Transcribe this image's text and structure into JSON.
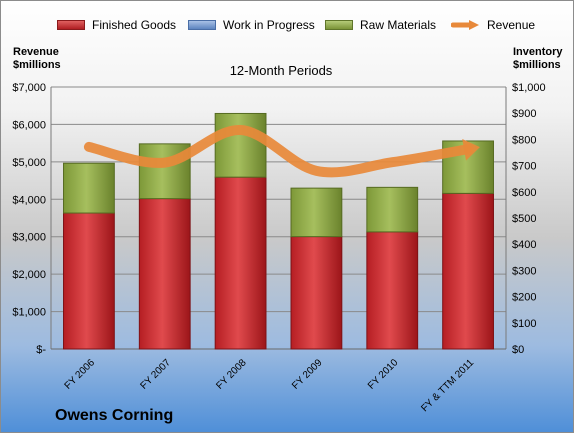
{
  "company": "Owens Corning",
  "chart_data": {
    "type": "bar",
    "stacked": true,
    "title": "12-Month Periods",
    "categories": [
      "FY 2006",
      "FY 2007",
      "FY 2008",
      "FY 2009",
      "FY 2010",
      "FY & TTM 2011"
    ],
    "y_left": {
      "label": "Revenue $millions",
      "ylim": [
        0,
        7000
      ],
      "ticks": [
        0,
        1000,
        2000,
        3000,
        4000,
        5000,
        6000,
        7000
      ],
      "tick_labels": [
        "$-",
        "$1,000",
        "$2,000",
        "$3,000",
        "$4,000",
        "$5,000",
        "$6,000",
        "$7,000"
      ]
    },
    "y_right": {
      "label": "Inventory $millions",
      "ylim": [
        0,
        1000
      ],
      "ticks": [
        0,
        100,
        200,
        300,
        400,
        500,
        600,
        700,
        800,
        900,
        1000
      ],
      "tick_labels": [
        "$0",
        "$100",
        "$200",
        "$300",
        "$400",
        "$500",
        "$600",
        "$700",
        "$800",
        "$900",
        "$1,000"
      ]
    },
    "grid": true,
    "legend": "top",
    "series": [
      {
        "name": "Finished Goods",
        "axis": "right",
        "color": "#c0282c",
        "values": [
          519,
          574,
          656,
          429,
          447,
          594
        ]
      },
      {
        "name": "Work in Progress",
        "axis": "right",
        "color": "#6f93c8",
        "values": [
          0,
          0,
          0,
          0,
          0,
          0
        ]
      },
      {
        "name": "Raw Materials",
        "axis": "right",
        "color": "#8ea849",
        "values": [
          190,
          209,
          243,
          185,
          170,
          200
        ]
      },
      {
        "name": "Revenue",
        "axis": "left",
        "type": "line",
        "color": "#e8893a",
        "values": [
          5400,
          4980,
          5850,
          4760,
          4990,
          5340
        ]
      }
    ]
  }
}
